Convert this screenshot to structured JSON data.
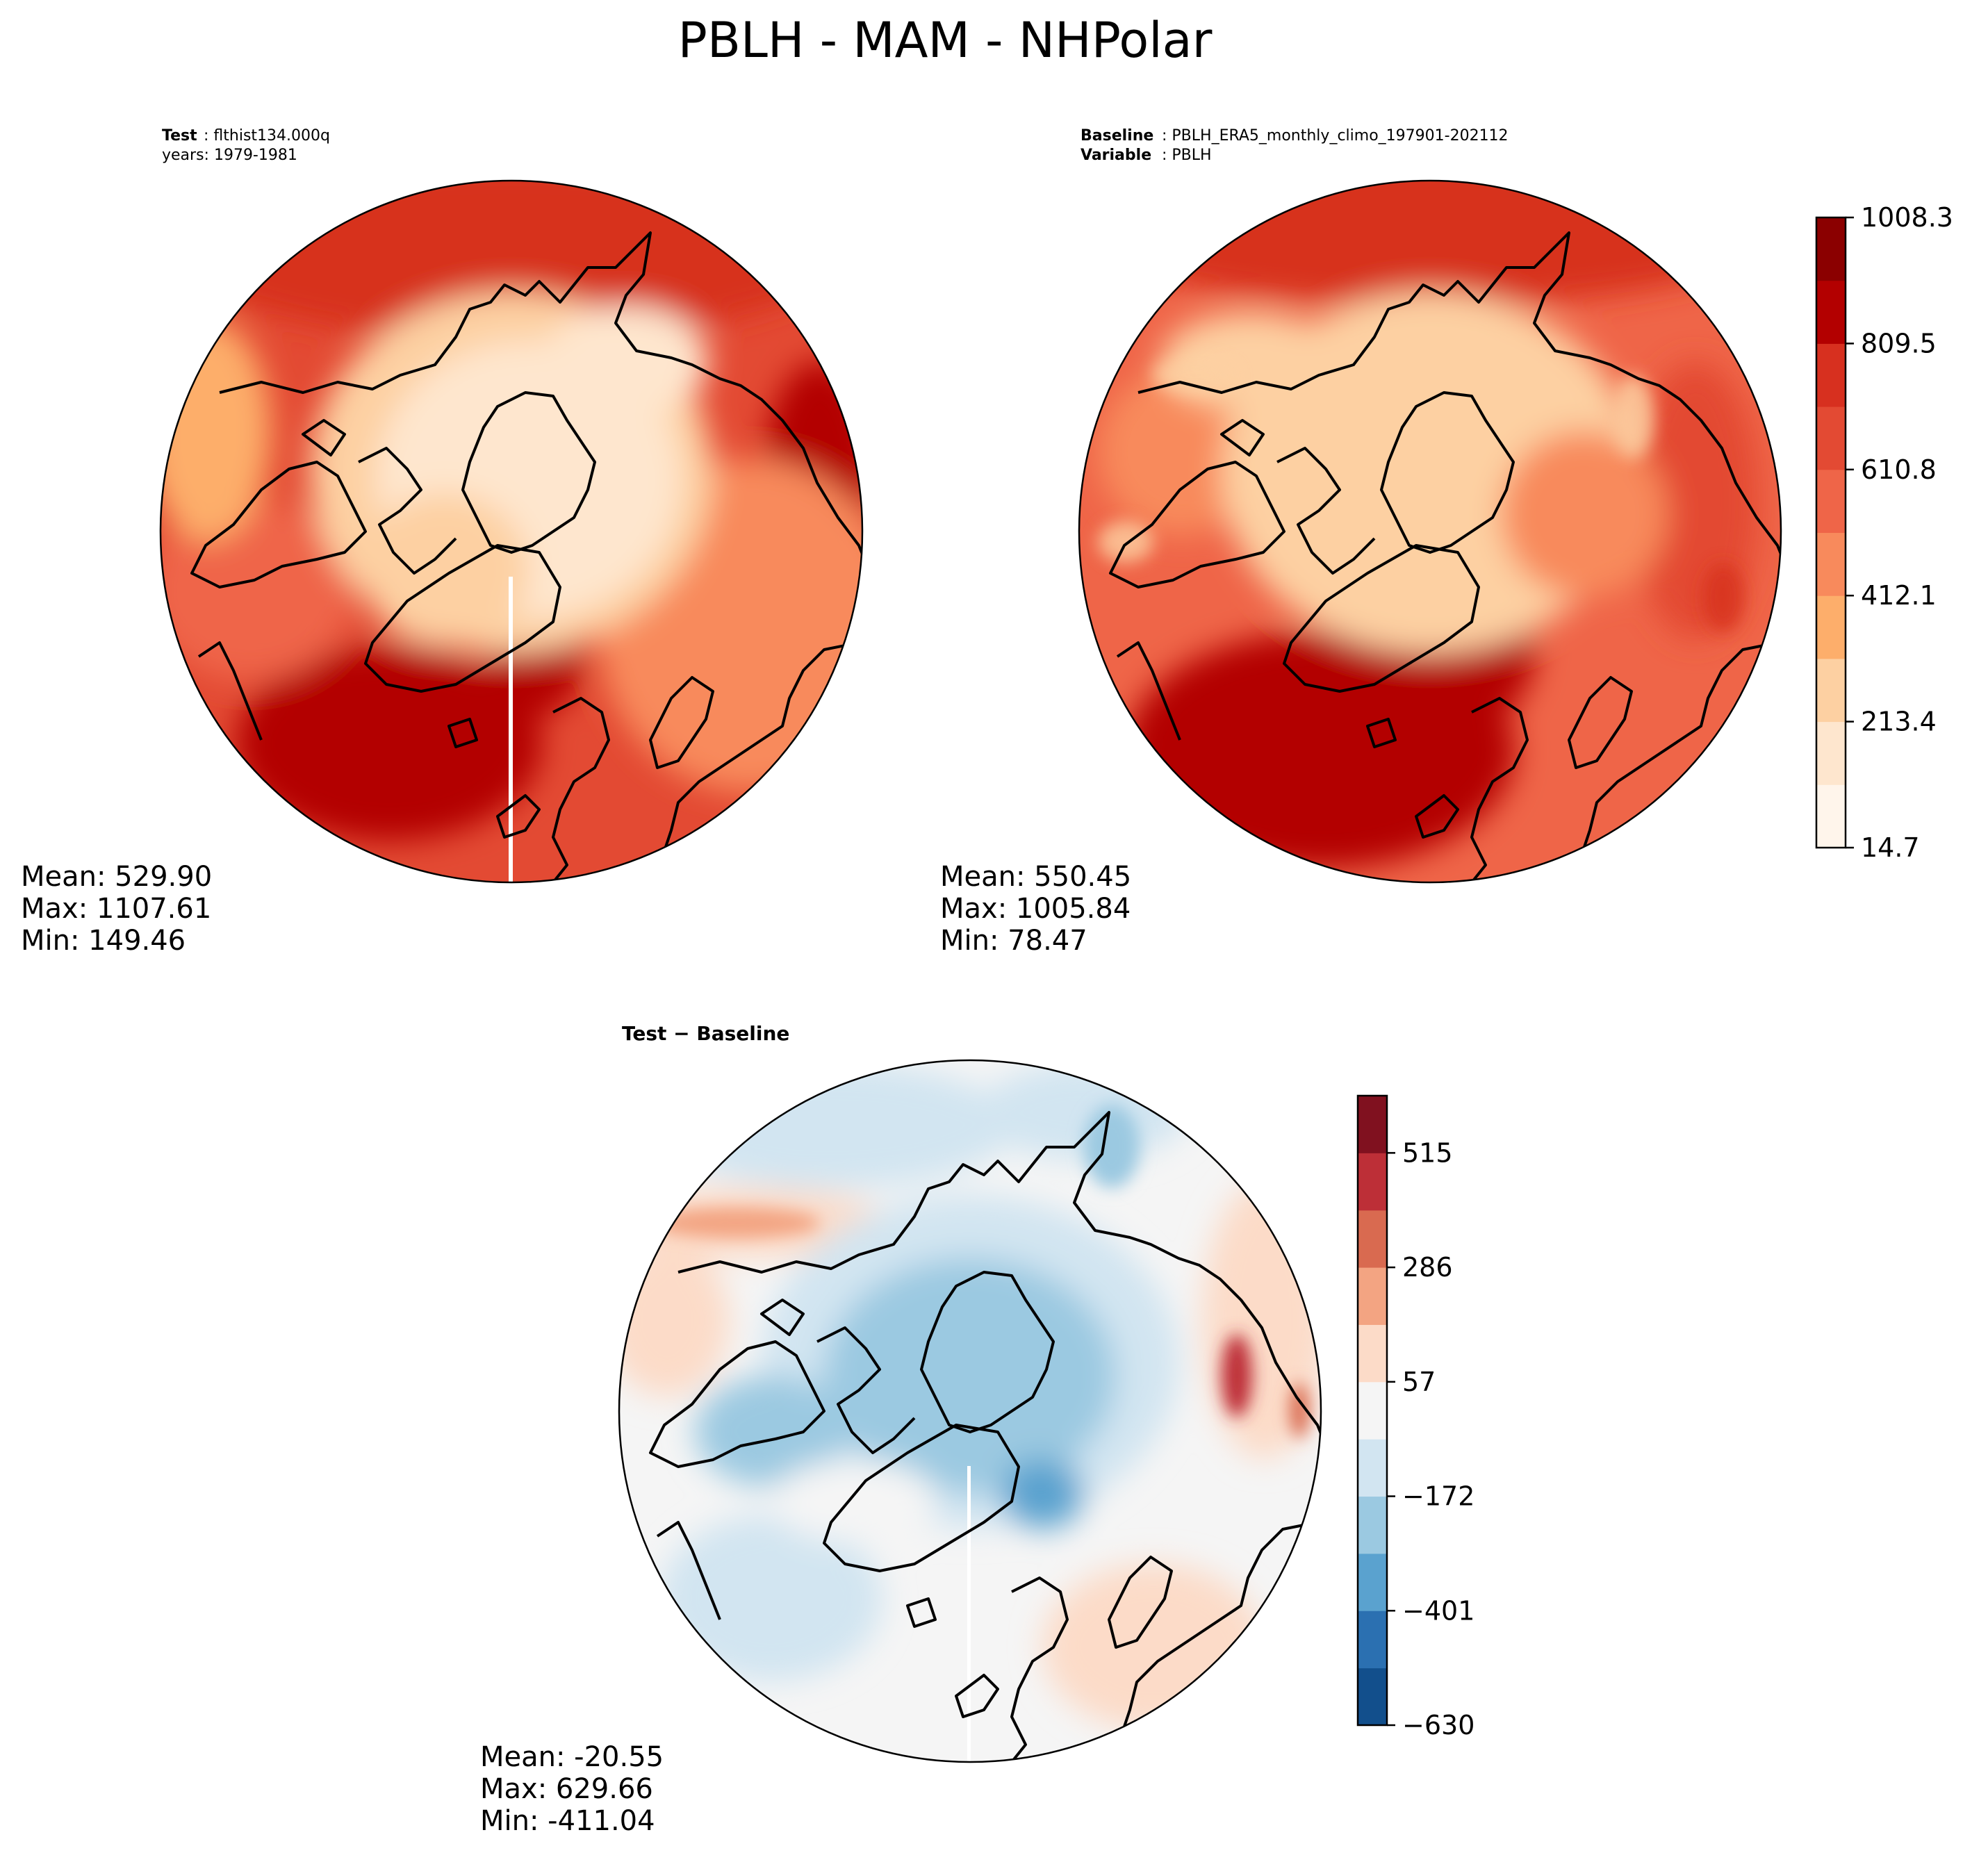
{
  "figure_title": "PBLH - MAM - NHPolar",
  "panels": {
    "test": {
      "label_key": "Test",
      "label_value": ": flthist134.000q",
      "years": "years: 1979-1981",
      "stats": [
        "Mean: 529.90",
        "Max: 1107.61",
        "Min: 149.46"
      ]
    },
    "baseline": {
      "label_key": "Baseline",
      "label_value": ": PBLH_ERA5_monthly_climo_197901-202112",
      "variable_key": "Variable",
      "variable_value": ": PBLH",
      "stats": [
        "Mean: 550.45",
        "Max: 1005.84",
        "Min: 78.47"
      ]
    },
    "diff": {
      "title": "Test − Baseline",
      "stats": [
        "Mean: -20.55",
        "Max: 629.66",
        "Min: -411.04"
      ]
    }
  },
  "colorbars": {
    "main": {
      "ticks": [
        "14.7",
        "213.4",
        "412.1",
        "610.8",
        "809.5",
        "1008.3"
      ],
      "colors": [
        "#fff5eb",
        "#fee6ce",
        "#fdd0a2",
        "#fdae6b",
        "#f88a5c",
        "#ef6548",
        "#e34a33",
        "#d7301f",
        "#b30000",
        "#8b0000"
      ]
    },
    "diff": {
      "ticks": [
        "−630",
        "−401",
        "−172",
        "57",
        "286",
        "515"
      ],
      "colors": [
        "#124f8c",
        "#2b70b1",
        "#5aa2cf",
        "#9bc9e1",
        "#d2e5f1",
        "#f5f5f5",
        "#fcdbc8",
        "#f3a482",
        "#d96a50",
        "#bd2f37",
        "#80111f"
      ]
    }
  },
  "chart_data": [
    {
      "type": "heatmap",
      "title": "Test: flthist134.000q, years: 1979-1981",
      "projection": "north polar stereographic",
      "variable": "PBLH",
      "colorbar_ticks": [
        14.7,
        213.4,
        412.1,
        610.8,
        809.5,
        1008.3
      ],
      "stats": {
        "mean": 529.9,
        "max": 1107.61,
        "min": 149.46
      }
    },
    {
      "type": "heatmap",
      "title": "Baseline: PBLH_ERA5_monthly_climo_197901-202112, Variable: PBLH",
      "projection": "north polar stereographic",
      "variable": "PBLH",
      "colorbar_ticks": [
        14.7,
        213.4,
        412.1,
        610.8,
        809.5,
        1008.3
      ],
      "stats": {
        "mean": 550.45,
        "max": 1005.84,
        "min": 78.47
      }
    },
    {
      "type": "heatmap",
      "title": "Test − Baseline",
      "projection": "north polar stereographic",
      "variable": "PBLH",
      "colorbar_ticks": [
        -630,
        -401,
        -172,
        57,
        286,
        515
      ],
      "stats": {
        "mean": -20.55,
        "max": 629.66,
        "min": -411.04
      }
    }
  ]
}
